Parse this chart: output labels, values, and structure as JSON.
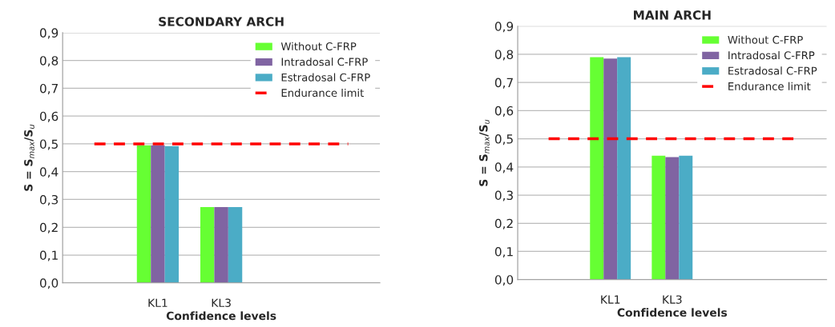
{
  "chart_data": [
    {
      "type": "bar",
      "title": "SECONDARY ARCH",
      "xlabel": "Confidence levels",
      "ylabel": "S = S$_{max}$/S$_{u}$",
      "categories": [
        null,
        "KL1",
        "KL3",
        null,
        null
      ],
      "series": [
        {
          "name": "Without C-FRP",
          "color": "#66ff33",
          "values": [
            null,
            0.495,
            0.273,
            null,
            null
          ]
        },
        {
          "name": "Intradosal C-FRP",
          "color": "#8064a2",
          "values": [
            null,
            0.495,
            0.273,
            null,
            null
          ]
        },
        {
          "name": "Estradosal C-FRP",
          "color": "#4bacc6",
          "values": [
            null,
            0.492,
            0.273,
            null,
            null
          ]
        },
        {
          "name": "Endurance limit",
          "type": "line",
          "line_style": "dashed",
          "color": "#ff0000",
          "values": [
            0.5,
            0.5,
            0.5,
            0.5,
            0.5
          ]
        }
      ],
      "ylim": [
        0,
        0.9
      ],
      "yticks": [
        {
          "value": 0,
          "label": "0,0"
        },
        {
          "value": 0.1,
          "label": "0,1"
        },
        {
          "value": 0.2,
          "label": "0,2"
        },
        {
          "value": 0.3,
          "label": "0,3"
        },
        {
          "value": 0.4,
          "label": "0,4"
        },
        {
          "value": 0.5,
          "label": "0,5"
        },
        {
          "value": 0.6,
          "label": "0,6"
        },
        {
          "value": 0.7,
          "label": "0,7"
        },
        {
          "value": 0.8,
          "label": "0,8"
        },
        {
          "value": 0.9,
          "label": "0,9"
        }
      ],
      "grid": "y",
      "legend": "top right"
    },
    {
      "type": "bar",
      "title": "MAIN ARCH",
      "xlabel": "Confidence levels",
      "ylabel": "S = S$_{max}$/S$_{u}$",
      "categories": [
        null,
        "KL1",
        "KL3",
        null,
        null
      ],
      "series": [
        {
          "name": "Without C-FRP",
          "color": "#66ff33",
          "values": [
            null,
            0.79,
            0.44,
            null,
            null
          ]
        },
        {
          "name": "Intradosal C-FRP",
          "color": "#8064a2",
          "values": [
            null,
            0.785,
            0.435,
            null,
            null
          ]
        },
        {
          "name": "Estradosal C-FRP",
          "color": "#4bacc6",
          "values": [
            null,
            0.79,
            0.44,
            null,
            null
          ]
        },
        {
          "name": "Endurance limit",
          "type": "line",
          "line_style": "dashed",
          "color": "#ff0000",
          "values": [
            0.5,
            0.5,
            0.5,
            0.5,
            0.5
          ]
        }
      ],
      "ylim": [
        0,
        0.9
      ],
      "yticks": [
        {
          "value": 0,
          "label": "0,0"
        },
        {
          "value": 0.1,
          "label": "0,1"
        },
        {
          "value": 0.2,
          "label": "0,2"
        },
        {
          "value": 0.3,
          "label": "0,3"
        },
        {
          "value": 0.4,
          "label": "0,4"
        },
        {
          "value": 0.5,
          "label": "0,5"
        },
        {
          "value": 0.6,
          "label": "0,6"
        },
        {
          "value": 0.7,
          "label": "0,7"
        },
        {
          "value": 0.8,
          "label": "0,8"
        },
        {
          "value": 0.9,
          "label": "0,9"
        }
      ],
      "grid": "y",
      "legend": "top right"
    }
  ]
}
